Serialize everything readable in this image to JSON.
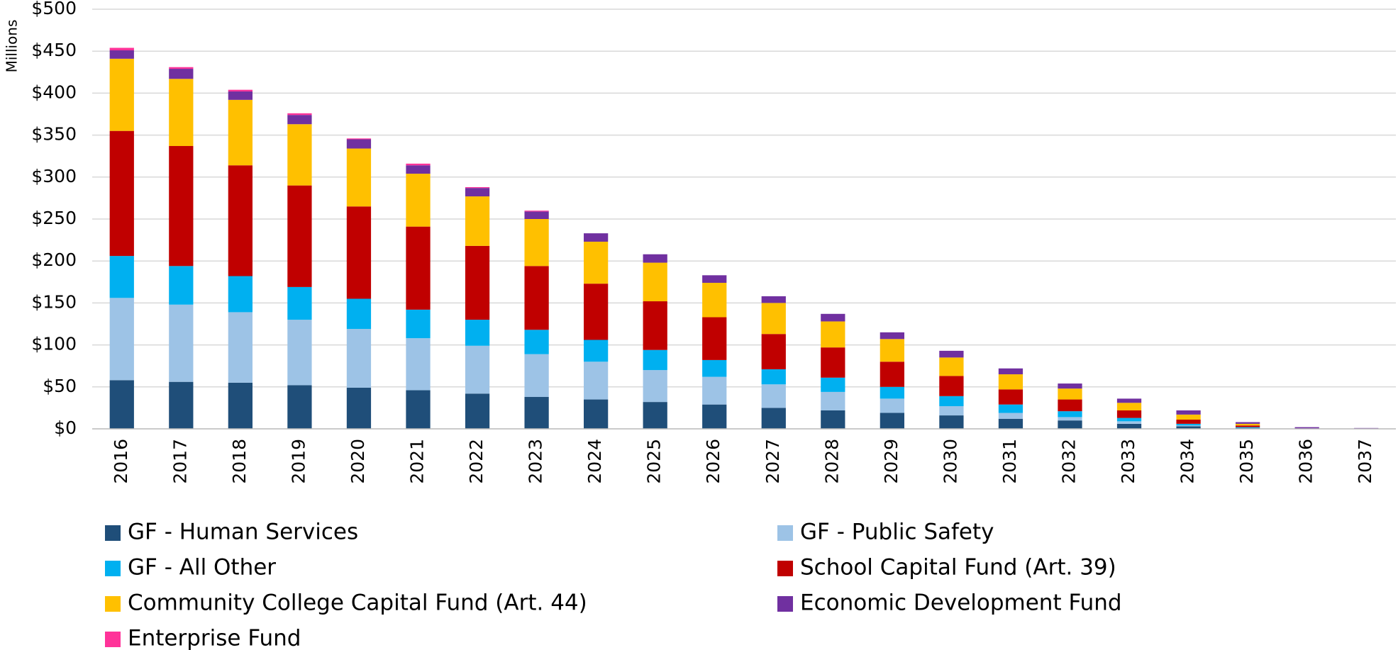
{
  "chart_data": {
    "type": "stacked_bar",
    "y_axis_label": "Millions",
    "categories": [
      "2016",
      "2017",
      "2018",
      "2019",
      "2020",
      "2021",
      "2022",
      "2023",
      "2024",
      "2025",
      "2026",
      "2027",
      "2028",
      "2029",
      "2030",
      "2031",
      "2032",
      "2033",
      "2034",
      "2035",
      "2036",
      "2037"
    ],
    "series": [
      {
        "name": "GF - Human Services",
        "color": "#1f4e79",
        "values": [
          58,
          56,
          55,
          52,
          49,
          46,
          42,
          38,
          35,
          32,
          29,
          25,
          22,
          19,
          16,
          12,
          10,
          6,
          3,
          1,
          0,
          0
        ]
      },
      {
        "name": "GF - Public Safety",
        "color": "#9dc3e6",
        "values": [
          98,
          92,
          84,
          78,
          70,
          62,
          57,
          51,
          45,
          38,
          33,
          28,
          22,
          17,
          11,
          7,
          4,
          3,
          1,
          0,
          0,
          0
        ]
      },
      {
        "name": "GF - All Other",
        "color": "#00b0f0",
        "values": [
          50,
          46,
          43,
          39,
          36,
          34,
          31,
          29,
          26,
          24,
          20,
          18,
          17,
          14,
          12,
          10,
          7,
          4,
          2,
          1,
          0,
          0
        ]
      },
      {
        "name": "School Capital Fund (Art. 39)",
        "color": "#c00000",
        "values": [
          149,
          143,
          132,
          121,
          110,
          99,
          88,
          76,
          67,
          58,
          51,
          42,
          36,
          30,
          24,
          18,
          14,
          9,
          5,
          2,
          0,
          0
        ]
      },
      {
        "name": "Community College Capital Fund (Art. 44)",
        "color": "#ffc000",
        "values": [
          86,
          80,
          78,
          73,
          69,
          63,
          59,
          56,
          50,
          46,
          41,
          37,
          31,
          27,
          22,
          18,
          13,
          9,
          6,
          2,
          0,
          0
        ]
      },
      {
        "name": "Economic Development Fund",
        "color": "#7030a0",
        "values": [
          10,
          12,
          10,
          11,
          11,
          10,
          10,
          9,
          10,
          10,
          9,
          8,
          9,
          8,
          8,
          7,
          6,
          5,
          5,
          2,
          2,
          1
        ]
      },
      {
        "name": "Enterprise Fund",
        "color": "#ff3399",
        "values": [
          3,
          2,
          2,
          2,
          1,
          2,
          1,
          1,
          0,
          0,
          0,
          0,
          0,
          0,
          0,
          0,
          0,
          0,
          0,
          0,
          0,
          0
        ]
      }
    ],
    "ylim": [
      0,
      500
    ],
    "yticks": [
      {
        "value": 0,
        "label": "$0"
      },
      {
        "value": 50,
        "label": "$50"
      },
      {
        "value": 100,
        "label": "$100"
      },
      {
        "value": 150,
        "label": "$150"
      },
      {
        "value": 200,
        "label": "$200"
      },
      {
        "value": 250,
        "label": "$250"
      },
      {
        "value": 300,
        "label": "$300"
      },
      {
        "value": 350,
        "label": "$350"
      },
      {
        "value": 400,
        "label": "$400"
      },
      {
        "value": 450,
        "label": "$450"
      },
      {
        "value": 500,
        "label": "$500"
      }
    ],
    "grid": true,
    "legend": "bottom"
  }
}
